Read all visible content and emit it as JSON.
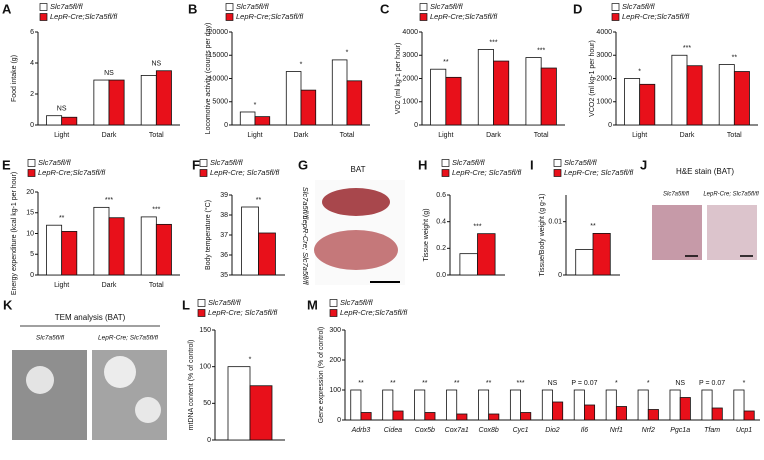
{
  "chart_data": [
    {
      "type": "bar",
      "panel": "A",
      "ylabel": "Food intake (g)",
      "categories": [
        "Light",
        "Dark",
        "Total"
      ],
      "series": [
        {
          "name": "Slc7a5fl/fl",
          "color": "#ffffff",
          "values": [
            0.6,
            2.9,
            3.2
          ]
        },
        {
          "name": "LepR-Cre;Slc7a5fl/fl",
          "color": "#e8101a",
          "values": [
            0.5,
            2.9,
            3.5
          ]
        }
      ],
      "significance": [
        "NS",
        "NS",
        "NS"
      ],
      "ylim": [
        0,
        6
      ],
      "yticks": [
        0,
        2,
        4,
        6
      ]
    },
    {
      "type": "bar",
      "panel": "B",
      "ylabel": "Locomotive activity (counts per day)",
      "categories": [
        "Light",
        "Dark",
        "Total"
      ],
      "series": [
        {
          "name": "Slc7a5fl/fl",
          "color": "#ffffff",
          "values": [
            2800,
            11500,
            14000
          ]
        },
        {
          "name": "LepR-Cre;Slc7a5fl/fl",
          "color": "#e8101a",
          "values": [
            1800,
            7500,
            9500
          ]
        }
      ],
      "significance": [
        "*",
        "*",
        "*"
      ],
      "ylim": [
        0,
        20000
      ],
      "yticks": [
        0,
        5000,
        10000,
        15000,
        20000
      ]
    },
    {
      "type": "bar",
      "panel": "C",
      "ylabel": "VO2 (ml kg-1 per hour)",
      "categories": [
        "Light",
        "Dark",
        "Total"
      ],
      "series": [
        {
          "name": "Slc7a5fl/fl",
          "color": "#ffffff",
          "values": [
            2400,
            3250,
            2900
          ]
        },
        {
          "name": "LepR-Cre;Slc7a5fl/fl",
          "color": "#e8101a",
          "values": [
            2050,
            2750,
            2450
          ]
        }
      ],
      "significance": [
        "**",
        "***",
        "***"
      ],
      "ylim": [
        0,
        4000
      ],
      "yticks": [
        0,
        1000,
        2000,
        3000,
        4000
      ]
    },
    {
      "type": "bar",
      "panel": "D",
      "ylabel": "VCO2 (ml kg-1 per hour)",
      "categories": [
        "Light",
        "Dark",
        "Total"
      ],
      "series": [
        {
          "name": "Slc7a5fl/fl",
          "color": "#ffffff",
          "values": [
            2000,
            3000,
            2600
          ]
        },
        {
          "name": "LepR-Cre;Slc7a5fl/fl",
          "color": "#e8101a",
          "values": [
            1750,
            2550,
            2300
          ]
        }
      ],
      "significance": [
        "*",
        "***",
        "**"
      ],
      "ylim": [
        0,
        4000
      ],
      "yticks": [
        0,
        1000,
        2000,
        3000,
        4000
      ]
    },
    {
      "type": "bar",
      "panel": "E",
      "ylabel": "Energy expenditure (kcal kg-1 per hour)",
      "categories": [
        "Light",
        "Dark",
        "Total"
      ],
      "series": [
        {
          "name": "Slc7a5fl/fl",
          "color": "#ffffff",
          "values": [
            12,
            16.3,
            14
          ]
        },
        {
          "name": "LepR-Cre;Slc7a5fl/fl",
          "color": "#e8101a",
          "values": [
            10.5,
            13.8,
            12.2
          ]
        }
      ],
      "significance": [
        "**",
        "***",
        "***"
      ],
      "ylim": [
        0,
        20
      ],
      "yticks": [
        0,
        5,
        10,
        15,
        20
      ]
    },
    {
      "type": "bar",
      "panel": "F",
      "ylabel": "Body temperature (°C)",
      "series": [
        {
          "name": "Slc7a5fl/fl",
          "color": "#ffffff",
          "values": [
            38.4
          ]
        },
        {
          "name": "LepR-Cre; Slc7a5fl/fl",
          "color": "#e8101a",
          "values": [
            37.1
          ]
        }
      ],
      "significance": [
        "**"
      ],
      "ylim": [
        35,
        39
      ],
      "yticks": [
        35,
        36,
        37,
        38,
        39
      ]
    },
    {
      "type": "bar",
      "panel": "H",
      "ylabel": "Tissue weight (g)",
      "series": [
        {
          "name": "Slc7a5fl/fl",
          "color": "#ffffff",
          "values": [
            0.16
          ]
        },
        {
          "name": "LepR-Cre; Slc7a5fl/fl",
          "color": "#e8101a",
          "values": [
            0.31
          ]
        }
      ],
      "significance": [
        "***"
      ],
      "ylim": [
        0,
        0.6
      ],
      "yticks": [
        {
          "value": 0,
          "label": "0.0"
        },
        0.2,
        0.4,
        0.6
      ]
    },
    {
      "type": "bar",
      "panel": "I",
      "ylabel": "Tissue/Body weight (g g-1)",
      "series": [
        {
          "name": "Slc7a5fl/fl",
          "color": "#ffffff",
          "values": [
            0.0048
          ]
        },
        {
          "name": "LepR-Cre; Slc7a5fl/fl",
          "color": "#e8101a",
          "values": [
            0.0078
          ]
        }
      ],
      "significance": [
        "**"
      ],
      "ylim": [
        0,
        0.015
      ],
      "yticks": [
        0,
        0.01
      ]
    },
    {
      "type": "bar",
      "panel": "L",
      "ylabel": "mtDNA content (% of control)",
      "series": [
        {
          "name": "Slc7a5fl/fl",
          "color": "#ffffff",
          "values": [
            100
          ]
        },
        {
          "name": "LepR-Cre; Slc7a5fl/fl",
          "color": "#e8101a",
          "values": [
            74
          ]
        }
      ],
      "significance": [
        "*"
      ],
      "ylim": [
        0,
        150
      ],
      "yticks": [
        0,
        50,
        100,
        150
      ]
    },
    {
      "type": "bar",
      "panel": "M",
      "ylabel": "Gene expression (% of control)",
      "categories": [
        "Adrb3",
        "Cidea",
        "Cox5b",
        "Cox7a1",
        "Cox8b",
        "Cyc1",
        "Dio2",
        "Il6",
        "Nrf1",
        "Nrf2",
        "Pgc1a",
        "Tfam",
        "Ucp1"
      ],
      "series": [
        {
          "name": "Slc7a5fl/fl",
          "color": "#ffffff",
          "values": [
            100,
            100,
            100,
            100,
            100,
            100,
            100,
            100,
            100,
            100,
            100,
            100,
            100
          ]
        },
        {
          "name": "LepR-Cre;Slc7a5fl/fl",
          "color": "#e8101a",
          "values": [
            25,
            30,
            25,
            20,
            20,
            25,
            60,
            50,
            45,
            35,
            75,
            40,
            30
          ]
        }
      ],
      "significance": [
        "**",
        "**",
        "**",
        "**",
        "**",
        "***",
        "NS",
        "P = 0.07",
        "*",
        "*",
        "NS",
        "P = 0.07",
        "*"
      ],
      "ylim": [
        0,
        300
      ],
      "yticks": [
        0,
        100,
        200,
        300
      ]
    }
  ],
  "image_panels": [
    {
      "panel": "G",
      "title": "BAT",
      "labels": [
        "Slc7a5fl/fl",
        "LepR-Cre; Slc7a5fl/fl"
      ]
    },
    {
      "panel": "J",
      "title": "H&E stain (BAT)",
      "labels": [
        "Slc7a5fl/fl",
        "LepR-Cre; Slc7a5fl/fl"
      ]
    },
    {
      "panel": "K",
      "title": "TEM analysis (BAT)",
      "labels": [
        "Slc7a5fl/fl",
        "LepR-Cre; Slc7a5fl/fl"
      ]
    }
  ]
}
